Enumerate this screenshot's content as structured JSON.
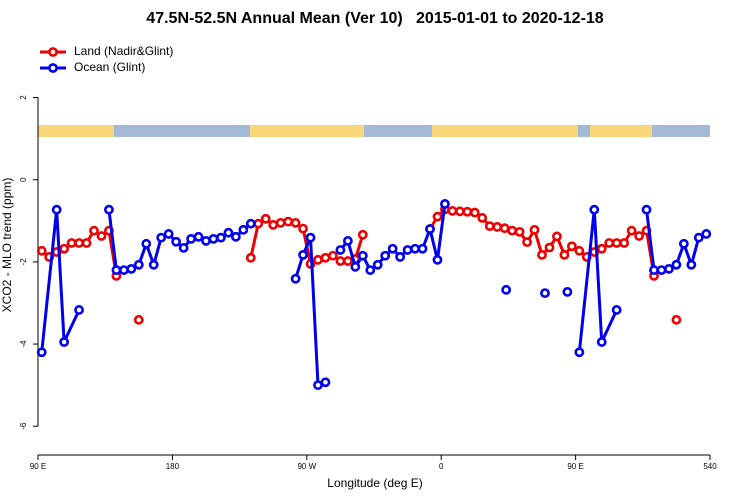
{
  "chart_data": {
    "type": "line",
    "title": "47.5N-52.5N Annual Mean (Ver 10)   2015-01-01 to 2020-12-18",
    "x_label": "Longitude (deg E)",
    "y_label": "XCO2 - MLO trend (ppm)",
    "xlim": [
      90,
      540
    ],
    "ylim": [
      -6.7,
      3.4
    ],
    "xticks": [
      {
        "value": 90,
        "label": "90 E"
      },
      180,
      {
        "value": 270,
        "label": "90 W"
      },
      {
        "value": 360,
        "label": "0"
      },
      {
        "value": 450,
        "label": "90 E"
      },
      540
    ],
    "yticks": [
      2,
      0,
      -2,
      -4,
      -6
    ],
    "legend": "topleft",
    "series": [
      {
        "name": "Land (Nadir&Glint)",
        "color": "#ee0000",
        "x": [
          92.5,
          97.5,
          102.5,
          107.5,
          112.5,
          117.5,
          122.5,
          127.5,
          132.5,
          137.5,
          142.5,
          null,
          157.5,
          null,
          232.5,
          237.5,
          242.5,
          247.5,
          252.5,
          257.5,
          262.5,
          267.5,
          272.5,
          277.5,
          282.5,
          287.5,
          292.5,
          297.5,
          302.5,
          307.5,
          null,
          352.5,
          357.5,
          362.5,
          367.5,
          372.5,
          377.5,
          382.5,
          387.5,
          392.5,
          397.5,
          402.5,
          407.5,
          412.5,
          417.5,
          422.5,
          427.5,
          432.5,
          437.5,
          442.5,
          447.5,
          452.5,
          457.5,
          462.5,
          467.5,
          472.5,
          477.5,
          482.5,
          487.5,
          492.5,
          497.5,
          502.5,
          null,
          517.5
        ],
        "values": [
          -1.73,
          -1.88,
          -1.76,
          -1.68,
          -1.54,
          -1.54,
          -1.54,
          -1.24,
          -1.37,
          -1.24,
          -2.34,
          null,
          -3.41,
          null,
          -1.9,
          -1.07,
          -0.95,
          -1.1,
          -1.05,
          -1.02,
          -1.05,
          -1.19,
          -2.05,
          -1.95,
          -1.9,
          -1.85,
          -1.98,
          -1.98,
          -1.93,
          -1.34,
          null,
          -1.2,
          -0.9,
          -0.72,
          -0.76,
          -0.77,
          -0.78,
          -0.8,
          -0.93,
          -1.13,
          -1.15,
          -1.18,
          -1.24,
          -1.27,
          -1.52,
          -1.22,
          -1.83,
          -1.65,
          -1.38,
          -1.83,
          -1.62,
          -1.73,
          -1.88,
          -1.76,
          -1.68,
          -1.54,
          -1.54,
          -1.54,
          -1.24,
          -1.37,
          -1.24,
          -2.34,
          null,
          -3.41
        ]
      },
      {
        "name": "Ocean (Glint)",
        "color": "#0000ee",
        "x": [
          92.5,
          102.5,
          107.5,
          117.5,
          null,
          137.5,
          142.5,
          147.5,
          152.5,
          157.5,
          162.5,
          167.5,
          172.5,
          177.5,
          182.5,
          187.5,
          192.5,
          197.5,
          202.5,
          207.5,
          212.5,
          217.5,
          222.5,
          227.5,
          232.5,
          null,
          262.5,
          267.5,
          272.5,
          277.5,
          282.5,
          null,
          292.5,
          297.5,
          302.5,
          307.5,
          312.5,
          317.5,
          322.5,
          327.5,
          332.5,
          337.5,
          342.5,
          347.5,
          352.5,
          357.5,
          362.5,
          null,
          403.5,
          null,
          429.5,
          null,
          444.5,
          null,
          452.5,
          462.5,
          467.5,
          477.5,
          null,
          497.5,
          502.5,
          507.5,
          512.5,
          517.5,
          522.5,
          527.5,
          532.5,
          537.5
        ],
        "values": [
          -4.2,
          -0.73,
          -3.95,
          -3.17,
          null,
          -0.73,
          -2.2,
          -2.2,
          -2.17,
          -2.07,
          -1.56,
          -2.07,
          -1.41,
          -1.32,
          -1.51,
          -1.66,
          -1.44,
          -1.39,
          -1.49,
          -1.44,
          -1.41,
          -1.29,
          -1.39,
          -1.22,
          -1.07,
          null,
          -2.41,
          -1.83,
          -1.41,
          -5.0,
          -4.93,
          null,
          -1.71,
          -1.49,
          -2.12,
          -1.85,
          -2.2,
          -2.07,
          -1.85,
          -1.68,
          -1.88,
          -1.71,
          -1.68,
          -1.68,
          -1.2,
          -1.95,
          -0.59,
          null,
          -2.68,
          null,
          -2.76,
          null,
          -2.73,
          null,
          -4.2,
          -0.73,
          -3.95,
          -3.17,
          null,
          -0.73,
          -2.2,
          -2.2,
          -2.17,
          -2.07,
          -1.56,
          -2.07,
          -1.41,
          -1.32
        ]
      }
    ]
  }
}
